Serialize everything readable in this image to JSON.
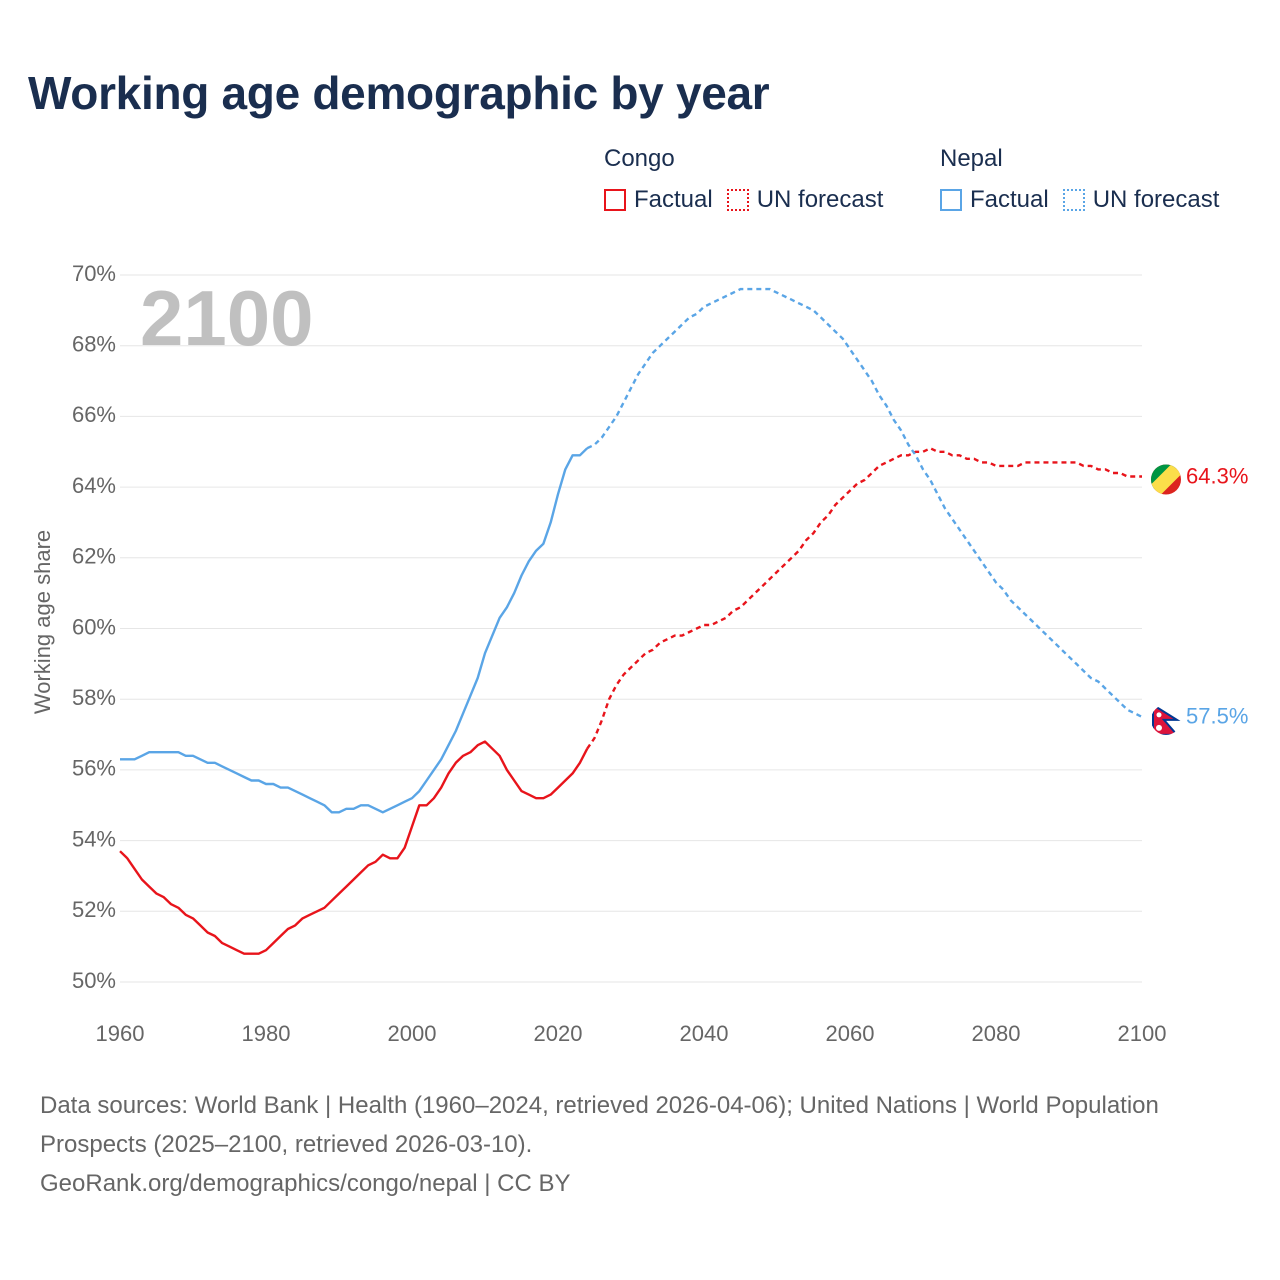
{
  "title": "Working age demographic by year",
  "legend": {
    "congo": {
      "name": "Congo",
      "factual_label": "Factual",
      "forecast_label": "UN forecast",
      "color": "#e8141b"
    },
    "nepal": {
      "name": "Nepal",
      "factual_label": "Factual",
      "forecast_label": "UN forecast",
      "color": "#5aa5e6"
    }
  },
  "chart_data": {
    "type": "line",
    "title": "Working age demographic by year",
    "xlabel": "",
    "ylabel": "Working age share",
    "xlim": [
      1960,
      2100
    ],
    "ylim": [
      50,
      70
    ],
    "x_ticks": [
      "1960",
      "1980",
      "2000",
      "2020",
      "2040",
      "2060",
      "2080",
      "2100"
    ],
    "y_ticks": [
      "50%",
      "52%",
      "54%",
      "56%",
      "58%",
      "60%",
      "62%",
      "64%",
      "66%",
      "68%",
      "70%"
    ],
    "year_label": "2100",
    "grid": true,
    "factual_end_year": 2024,
    "series": [
      {
        "name": "Congo",
        "color": "#e8141b",
        "end_label": "64.3%",
        "factual": [
          [
            1960,
            53.7
          ],
          [
            1961,
            53.5
          ],
          [
            1962,
            53.2
          ],
          [
            1963,
            52.9
          ],
          [
            1964,
            52.7
          ],
          [
            1965,
            52.5
          ],
          [
            1966,
            52.4
          ],
          [
            1967,
            52.2
          ],
          [
            1968,
            52.1
          ],
          [
            1969,
            51.9
          ],
          [
            1970,
            51.8
          ],
          [
            1971,
            51.6
          ],
          [
            1972,
            51.4
          ],
          [
            1973,
            51.3
          ],
          [
            1974,
            51.1
          ],
          [
            1975,
            51.0
          ],
          [
            1976,
            50.9
          ],
          [
            1977,
            50.8
          ],
          [
            1978,
            50.8
          ],
          [
            1979,
            50.8
          ],
          [
            1980,
            50.9
          ],
          [
            1981,
            51.1
          ],
          [
            1982,
            51.3
          ],
          [
            1983,
            51.5
          ],
          [
            1984,
            51.6
          ],
          [
            1985,
            51.8
          ],
          [
            1986,
            51.9
          ],
          [
            1987,
            52.0
          ],
          [
            1988,
            52.1
          ],
          [
            1989,
            52.3
          ],
          [
            1990,
            52.5
          ],
          [
            1991,
            52.7
          ],
          [
            1992,
            52.9
          ],
          [
            1993,
            53.1
          ],
          [
            1994,
            53.3
          ],
          [
            1995,
            53.4
          ],
          [
            1996,
            53.6
          ],
          [
            1997,
            53.5
          ],
          [
            1998,
            53.5
          ],
          [
            1999,
            53.8
          ],
          [
            2000,
            54.4
          ],
          [
            2001,
            55.0
          ],
          [
            2002,
            55.0
          ],
          [
            2003,
            55.2
          ],
          [
            2004,
            55.5
          ],
          [
            2005,
            55.9
          ],
          [
            2006,
            56.2
          ],
          [
            2007,
            56.4
          ],
          [
            2008,
            56.5
          ],
          [
            2009,
            56.7
          ],
          [
            2010,
            56.8
          ],
          [
            2011,
            56.6
          ],
          [
            2012,
            56.4
          ],
          [
            2013,
            56.0
          ],
          [
            2014,
            55.7
          ],
          [
            2015,
            55.4
          ],
          [
            2016,
            55.3
          ],
          [
            2017,
            55.2
          ],
          [
            2018,
            55.2
          ],
          [
            2019,
            55.3
          ],
          [
            2020,
            55.5
          ],
          [
            2021,
            55.7
          ],
          [
            2022,
            55.9
          ],
          [
            2023,
            56.2
          ],
          [
            2024,
            56.6
          ]
        ],
        "forecast": [
          [
            2024,
            56.6
          ],
          [
            2025,
            56.9
          ],
          [
            2026,
            57.4
          ],
          [
            2027,
            58.0
          ],
          [
            2028,
            58.4
          ],
          [
            2029,
            58.7
          ],
          [
            2030,
            58.9
          ],
          [
            2031,
            59.1
          ],
          [
            2032,
            59.3
          ],
          [
            2033,
            59.4
          ],
          [
            2034,
            59.6
          ],
          [
            2035,
            59.7
          ],
          [
            2036,
            59.8
          ],
          [
            2037,
            59.8
          ],
          [
            2038,
            59.9
          ],
          [
            2039,
            60.0
          ],
          [
            2040,
            60.1
          ],
          [
            2041,
            60.1
          ],
          [
            2042,
            60.2
          ],
          [
            2043,
            60.3
          ],
          [
            2044,
            60.5
          ],
          [
            2045,
            60.6
          ],
          [
            2046,
            60.8
          ],
          [
            2047,
            61.0
          ],
          [
            2048,
            61.2
          ],
          [
            2049,
            61.4
          ],
          [
            2050,
            61.6
          ],
          [
            2051,
            61.8
          ],
          [
            2052,
            62.0
          ],
          [
            2053,
            62.2
          ],
          [
            2054,
            62.5
          ],
          [
            2055,
            62.7
          ],
          [
            2056,
            63.0
          ],
          [
            2057,
            63.2
          ],
          [
            2058,
            63.5
          ],
          [
            2059,
            63.7
          ],
          [
            2060,
            63.9
          ],
          [
            2061,
            64.1
          ],
          [
            2062,
            64.2
          ],
          [
            2063,
            64.4
          ],
          [
            2064,
            64.6
          ],
          [
            2065,
            64.7
          ],
          [
            2066,
            64.8
          ],
          [
            2067,
            64.9
          ],
          [
            2068,
            64.9
          ],
          [
            2069,
            65.0
          ],
          [
            2070,
            65.0
          ],
          [
            2071,
            65.1
          ],
          [
            2072,
            65.0
          ],
          [
            2073,
            65.0
          ],
          [
            2074,
            64.9
          ],
          [
            2075,
            64.9
          ],
          [
            2076,
            64.8
          ],
          [
            2077,
            64.8
          ],
          [
            2078,
            64.7
          ],
          [
            2079,
            64.7
          ],
          [
            2080,
            64.6
          ],
          [
            2081,
            64.6
          ],
          [
            2082,
            64.6
          ],
          [
            2083,
            64.6
          ],
          [
            2084,
            64.7
          ],
          [
            2085,
            64.7
          ],
          [
            2086,
            64.7
          ],
          [
            2087,
            64.7
          ],
          [
            2088,
            64.7
          ],
          [
            2089,
            64.7
          ],
          [
            2090,
            64.7
          ],
          [
            2091,
            64.7
          ],
          [
            2092,
            64.6
          ],
          [
            2093,
            64.6
          ],
          [
            2094,
            64.5
          ],
          [
            2095,
            64.5
          ],
          [
            2096,
            64.4
          ],
          [
            2097,
            64.4
          ],
          [
            2098,
            64.3
          ],
          [
            2099,
            64.3
          ],
          [
            2100,
            64.3
          ]
        ]
      },
      {
        "name": "Nepal",
        "color": "#5aa5e6",
        "end_label": "57.5%",
        "factual": [
          [
            1960,
            56.3
          ],
          [
            1961,
            56.3
          ],
          [
            1962,
            56.3
          ],
          [
            1963,
            56.4
          ],
          [
            1964,
            56.5
          ],
          [
            1965,
            56.5
          ],
          [
            1966,
            56.5
          ],
          [
            1967,
            56.5
          ],
          [
            1968,
            56.5
          ],
          [
            1969,
            56.4
          ],
          [
            1970,
            56.4
          ],
          [
            1971,
            56.3
          ],
          [
            1972,
            56.2
          ],
          [
            1973,
            56.2
          ],
          [
            1974,
            56.1
          ],
          [
            1975,
            56.0
          ],
          [
            1976,
            55.9
          ],
          [
            1977,
            55.8
          ],
          [
            1978,
            55.7
          ],
          [
            1979,
            55.7
          ],
          [
            1980,
            55.6
          ],
          [
            1981,
            55.6
          ],
          [
            1982,
            55.5
          ],
          [
            1983,
            55.5
          ],
          [
            1984,
            55.4
          ],
          [
            1985,
            55.3
          ],
          [
            1986,
            55.2
          ],
          [
            1987,
            55.1
          ],
          [
            1988,
            55.0
          ],
          [
            1989,
            54.8
          ],
          [
            1990,
            54.8
          ],
          [
            1991,
            54.9
          ],
          [
            1992,
            54.9
          ],
          [
            1993,
            55.0
          ],
          [
            1994,
            55.0
          ],
          [
            1995,
            54.9
          ],
          [
            1996,
            54.8
          ],
          [
            1997,
            54.9
          ],
          [
            1998,
            55.0
          ],
          [
            1999,
            55.1
          ],
          [
            2000,
            55.2
          ],
          [
            2001,
            55.4
          ],
          [
            2002,
            55.7
          ],
          [
            2003,
            56.0
          ],
          [
            2004,
            56.3
          ],
          [
            2005,
            56.7
          ],
          [
            2006,
            57.1
          ],
          [
            2007,
            57.6
          ],
          [
            2008,
            58.1
          ],
          [
            2009,
            58.6
          ],
          [
            2010,
            59.3
          ],
          [
            2011,
            59.8
          ],
          [
            2012,
            60.3
          ],
          [
            2013,
            60.6
          ],
          [
            2014,
            61.0
          ],
          [
            2015,
            61.5
          ],
          [
            2016,
            61.9
          ],
          [
            2017,
            62.2
          ],
          [
            2018,
            62.4
          ],
          [
            2019,
            63.0
          ],
          [
            2020,
            63.8
          ],
          [
            2021,
            64.5
          ],
          [
            2022,
            64.9
          ],
          [
            2023,
            64.9
          ],
          [
            2024,
            65.1
          ]
        ],
        "forecast": [
          [
            2024,
            65.1
          ],
          [
            2025,
            65.2
          ],
          [
            2026,
            65.4
          ],
          [
            2027,
            65.7
          ],
          [
            2028,
            66.0
          ],
          [
            2029,
            66.4
          ],
          [
            2030,
            66.8
          ],
          [
            2031,
            67.2
          ],
          [
            2032,
            67.5
          ],
          [
            2033,
            67.8
          ],
          [
            2034,
            68.0
          ],
          [
            2035,
            68.2
          ],
          [
            2036,
            68.4
          ],
          [
            2037,
            68.6
          ],
          [
            2038,
            68.8
          ],
          [
            2039,
            68.9
          ],
          [
            2040,
            69.1
          ],
          [
            2041,
            69.2
          ],
          [
            2042,
            69.3
          ],
          [
            2043,
            69.4
          ],
          [
            2044,
            69.5
          ],
          [
            2045,
            69.6
          ],
          [
            2046,
            69.6
          ],
          [
            2047,
            69.6
          ],
          [
            2048,
            69.6
          ],
          [
            2049,
            69.6
          ],
          [
            2050,
            69.5
          ],
          [
            2051,
            69.4
          ],
          [
            2052,
            69.3
          ],
          [
            2053,
            69.2
          ],
          [
            2054,
            69.1
          ],
          [
            2055,
            69.0
          ],
          [
            2056,
            68.8
          ],
          [
            2057,
            68.6
          ],
          [
            2058,
            68.4
          ],
          [
            2059,
            68.2
          ],
          [
            2060,
            67.9
          ],
          [
            2061,
            67.6
          ],
          [
            2062,
            67.3
          ],
          [
            2063,
            67.0
          ],
          [
            2064,
            66.6
          ],
          [
            2065,
            66.3
          ],
          [
            2066,
            65.9
          ],
          [
            2067,
            65.6
          ],
          [
            2068,
            65.2
          ],
          [
            2069,
            64.9
          ],
          [
            2070,
            64.5
          ],
          [
            2071,
            64.2
          ],
          [
            2072,
            63.8
          ],
          [
            2073,
            63.4
          ],
          [
            2074,
            63.1
          ],
          [
            2075,
            62.8
          ],
          [
            2076,
            62.5
          ],
          [
            2077,
            62.2
          ],
          [
            2078,
            61.9
          ],
          [
            2079,
            61.6
          ],
          [
            2080,
            61.3
          ],
          [
            2081,
            61.1
          ],
          [
            2082,
            60.8
          ],
          [
            2083,
            60.6
          ],
          [
            2084,
            60.4
          ],
          [
            2085,
            60.2
          ],
          [
            2086,
            60.0
          ],
          [
            2087,
            59.8
          ],
          [
            2088,
            59.6
          ],
          [
            2089,
            59.4
          ],
          [
            2090,
            59.2
          ],
          [
            2091,
            59.0
          ],
          [
            2092,
            58.8
          ],
          [
            2093,
            58.6
          ],
          [
            2094,
            58.5
          ],
          [
            2095,
            58.3
          ],
          [
            2096,
            58.1
          ],
          [
            2097,
            57.9
          ],
          [
            2098,
            57.7
          ],
          [
            2099,
            57.6
          ],
          [
            2100,
            57.5
          ]
        ]
      }
    ]
  },
  "footer": {
    "sources": "Data sources: World Bank | Health (1960–2024, retrieved 2026-04-06); United Nations | World Population Prospects (2025–2100, retrieved 2026-03-10).",
    "credit": "GeoRank.org/demographics/congo/nepal | CC BY"
  }
}
